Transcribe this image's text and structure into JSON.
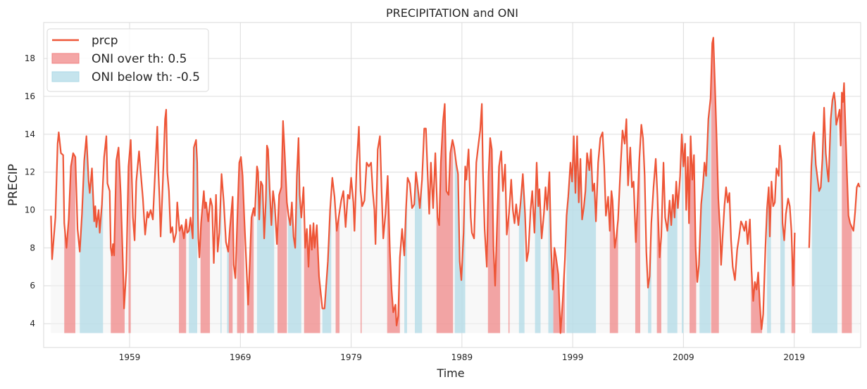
{
  "chart_data": {
    "type": "line",
    "title": "PRECIPITATION and ONI",
    "xlabel": "Time",
    "ylabel": "PRECIP",
    "grid": true,
    "legend": "upper left",
    "xlim": [
      1951.24,
      2025.0
    ],
    "xticks": [
      1959,
      1969,
      1979,
      1989,
      1999,
      2009,
      2019
    ],
    "ylim": [
      2.74,
      19.9
    ],
    "yticks": [
      4,
      6,
      8,
      10,
      12,
      14,
      16,
      18
    ],
    "fill_base": 3.5,
    "x": [
      1951.9,
      1952.0,
      1952.3,
      1952.5,
      1952.6,
      1952.8,
      1953.0,
      1953.1,
      1953.3,
      1953.5,
      1953.7,
      1953.9,
      1954.1,
      1954.3,
      1954.5,
      1954.7,
      1954.9,
      1955.1,
      1955.3,
      1955.4,
      1955.6,
      1955.8,
      1955.9,
      1956.0,
      1956.2,
      1956.3,
      1956.5,
      1956.7,
      1956.9,
      1957.0,
      1957.2,
      1957.3,
      1957.4,
      1957.5,
      1957.6,
      1957.8,
      1958.0,
      1958.2,
      1958.4,
      1958.5,
      1958.7,
      1958.9,
      1959.1,
      1959.3,
      1959.45,
      1959.6,
      1959.85,
      1960.0,
      1960.2,
      1960.4,
      1960.6,
      1960.7,
      1960.9,
      1961.1,
      1961.3,
      1961.5,
      1961.6,
      1961.7,
      1961.8,
      1962.0,
      1962.2,
      1962.3,
      1962.4,
      1962.55,
      1962.7,
      1962.85,
      1963.0,
      1963.2,
      1963.3,
      1963.5,
      1963.7,
      1963.9,
      1964.1,
      1964.2,
      1964.35,
      1964.5,
      1964.7,
      1964.8,
      1965.0,
      1965.1,
      1965.2,
      1965.3,
      1965.45,
      1965.7,
      1965.8,
      1965.9,
      1966.1,
      1966.3,
      1966.45,
      1966.6,
      1966.8,
      1966.95,
      1967.1,
      1967.3,
      1967.5,
      1967.7,
      1967.9,
      1968.05,
      1968.3,
      1968.4,
      1968.55,
      1968.75,
      1968.9,
      1969.05,
      1969.2,
      1969.35,
      1969.55,
      1969.7,
      1969.85,
      1970.0,
      1970.2,
      1970.3,
      1970.5,
      1970.6,
      1970.7,
      1970.85,
      1971.0,
      1971.15,
      1971.3,
      1971.4,
      1971.5,
      1971.65,
      1971.8,
      1971.95,
      1972.1,
      1972.3,
      1972.5,
      1972.7,
      1972.85,
      1973.0,
      1973.2,
      1973.35,
      1973.5,
      1973.65,
      1973.8,
      1973.95,
      1974.1,
      1974.25,
      1974.35,
      1974.5,
      1974.7,
      1974.85,
      1975.0,
      1975.15,
      1975.3,
      1975.45,
      1975.6,
      1975.7,
      1975.9,
      1976.1,
      1976.4,
      1976.6,
      1976.9,
      1977.1,
      1977.3,
      1977.5,
      1977.7,
      1977.9,
      1978.1,
      1978.3,
      1978.5,
      1978.7,
      1978.85,
      1979.0,
      1979.2,
      1979.3,
      1979.5,
      1979.7,
      1979.85,
      1980.0,
      1980.2,
      1980.4,
      1980.6,
      1980.8,
      1980.95,
      1981.1,
      1981.2,
      1981.4,
      1981.6,
      1981.75,
      1981.9,
      1982.1,
      1982.3,
      1982.5,
      1982.65,
      1982.8,
      1983.0,
      1983.1,
      1983.25,
      1983.4,
      1983.6,
      1983.8,
      1983.95,
      1984.1,
      1984.3,
      1984.5,
      1984.7,
      1984.85,
      1985.0,
      1985.2,
      1985.4,
      1985.6,
      1985.75,
      1985.9,
      1986.05,
      1986.2,
      1986.4,
      1986.6,
      1986.8,
      1986.95,
      1987.1,
      1987.3,
      1987.45,
      1987.6,
      1987.8,
      1987.95,
      1988.15,
      1988.3,
      1988.5,
      1988.65,
      1988.8,
      1988.95,
      1989.15,
      1989.3,
      1989.4,
      1989.6,
      1989.8,
      1989.9,
      1990.1,
      1990.3,
      1990.5,
      1990.65,
      1990.8,
      1990.9,
      1991.05,
      1991.25,
      1991.4,
      1991.55,
      1991.7,
      1991.85,
      1992.0,
      1992.15,
      1992.35,
      1992.55,
      1992.7,
      1992.9,
      1993.05,
      1993.25,
      1993.45,
      1993.6,
      1993.75,
      1993.9,
      1994.1,
      1994.3,
      1994.5,
      1994.7,
      1994.85,
      1995.0,
      1995.2,
      1995.35,
      1995.55,
      1995.75,
      1995.9,
      1996.0,
      1996.2,
      1996.4,
      1996.55,
      1996.7,
      1996.9,
      1997.05,
      1997.2,
      1997.35,
      1997.5,
      1997.7,
      1997.9,
      1998.1,
      1998.3,
      1998.45,
      1998.6,
      1998.8,
      1998.95,
      1999.1,
      1999.25,
      1999.4,
      1999.55,
      1999.7,
      1999.85,
      2000.0,
      2000.15,
      2000.3,
      2000.5,
      2000.65,
      2000.8,
      2000.95,
      2001.1,
      2001.3,
      2001.5,
      2001.7,
      2001.85,
      2002.0,
      2002.2,
      2002.35,
      2002.5,
      2002.6,
      2002.8,
      2002.95,
      2003.1,
      2003.3,
      2003.5,
      2003.7,
      2003.85,
      2004.0,
      2004.2,
      2004.35,
      2004.5,
      2004.7,
      2004.85,
      2005.0,
      2005.2,
      2005.35,
      2005.5,
      2005.65,
      2005.8,
      2005.95,
      2006.1,
      2006.3,
      2006.5,
      2006.65,
      2006.85,
      2007.0,
      2007.2,
      2007.35,
      2007.55,
      2007.75,
      2007.9,
      2008.05,
      2008.2,
      2008.35,
      2008.5,
      2008.7,
      2008.85,
      2009.0,
      2009.15,
      2009.25,
      2009.4,
      2009.5,
      2009.65,
      2009.8,
      2009.95,
      2010.1,
      2010.25,
      2010.4,
      2010.6,
      2010.75,
      2010.9,
      2011.05,
      2011.25,
      2011.45,
      2011.6,
      2011.7,
      2011.85,
      2012.0,
      2012.15,
      2012.3,
      2012.4,
      2012.55,
      2012.7,
      2012.85,
      2013.0,
      2013.15,
      2013.3,
      2013.45,
      2013.65,
      2013.85,
      2014.0,
      2014.2,
      2014.35,
      2014.5,
      2014.65,
      2014.8,
      2015.0,
      2015.15,
      2015.3,
      2015.45,
      2015.6,
      2015.75,
      2015.9,
      2016.05,
      2016.2,
      2016.4,
      2016.55,
      2016.7,
      2016.8,
      2016.95,
      2017.1,
      2017.25,
      2017.4,
      2017.6,
      2017.7,
      2017.85,
      2017.95,
      2018.1,
      2018.25,
      2018.45,
      2018.6,
      2018.75,
      2018.9,
      2019.05,
      2019.2,
      2020.35,
      2020.55,
      2020.7,
      2020.8,
      2020.95,
      2021.1,
      2021.25,
      2021.4,
      2021.55,
      2021.7,
      2021.85,
      2022.0,
      2022.1,
      2022.3,
      2022.45,
      2022.6,
      2022.7,
      2022.8,
      2022.95,
      2023.1,
      2023.2,
      2023.3,
      2023.4,
      2023.5,
      2023.6,
      2023.75,
      2023.9,
      2024.05,
      2024.2,
      2024.35,
      2024.5,
      2024.65,
      2024.8,
      2024.9
    ],
    "series": [
      {
        "name": "prcp",
        "color": "#ee5537",
        "values": [
          9.7,
          7.4,
          9.6,
          13.5,
          14.1,
          13.0,
          12.9,
          9.3,
          8.0,
          9.5,
          12.3,
          13.0,
          12.8,
          9.0,
          7.8,
          9.8,
          12.6,
          13.9,
          11.5,
          10.9,
          12.2,
          9.4,
          10.2,
          9.1,
          10.0,
          8.8,
          10.3,
          12.8,
          13.9,
          11.4,
          11.0,
          8.0,
          7.6,
          8.2,
          7.6,
          12.6,
          13.3,
          10.8,
          7.1,
          4.8,
          6.8,
          12.3,
          13.7,
          9.6,
          8.4,
          11.5,
          13.1,
          12.0,
          10.6,
          8.7,
          9.9,
          9.6,
          10.0,
          9.5,
          12.0,
          14.4,
          12.0,
          10.6,
          8.6,
          11.5,
          14.8,
          15.3,
          12.0,
          11.0,
          8.8,
          9.1,
          8.3,
          8.8,
          10.4,
          8.9,
          9.2,
          8.5,
          9.5,
          8.8,
          8.9,
          9.6,
          8.5,
          13.3,
          13.7,
          12.5,
          8.5,
          7.5,
          9.3,
          11.0,
          10.1,
          10.4,
          9.4,
          10.6,
          10.2,
          7.2,
          10.8,
          7.8,
          8.8,
          11.9,
          10.4,
          8.3,
          7.8,
          9.0,
          10.7,
          7.1,
          6.4,
          10.0,
          12.5,
          12.8,
          11.8,
          9.6,
          7.0,
          5.0,
          7.2,
          9.6,
          10.1,
          9.7,
          12.3,
          12.0,
          9.5,
          11.5,
          11.3,
          8.5,
          10.5,
          13.4,
          13.2,
          11.0,
          9.2,
          11.0,
          10.3,
          8.2,
          10.8,
          11.2,
          14.7,
          13.0,
          10.4,
          9.7,
          9.2,
          10.4,
          8.6,
          8.0,
          11.8,
          13.8,
          10.8,
          9.6,
          11.2,
          8.0,
          9.0,
          7.0,
          9.2,
          7.9,
          9.3,
          8.0,
          9.2,
          6.5,
          4.8,
          4.8,
          7.3,
          10.0,
          11.7,
          10.7,
          8.9,
          9.7,
          10.5,
          11.0,
          9.1,
          10.8,
          10.6,
          11.7,
          10.4,
          8.9,
          12.4,
          14.4,
          11.0,
          10.2,
          10.5,
          12.5,
          12.3,
          12.5,
          11.0,
          10.0,
          8.2,
          13.2,
          13.9,
          11.0,
          8.5,
          9.8,
          11.8,
          7.8,
          5.8,
          4.6,
          5.0,
          3.9,
          4.4,
          7.5,
          9.0,
          7.6,
          10.0,
          11.7,
          11.4,
          10.1,
          10.3,
          12.0,
          11.3,
          10.1,
          11.6,
          14.3,
          14.3,
          12.0,
          9.8,
          12.5,
          10.1,
          13.0,
          9.6,
          9.2,
          12.5,
          14.7,
          15.6,
          11.0,
          10.8,
          13.0,
          13.7,
          13.3,
          12.4,
          11.9,
          7.3,
          6.3,
          8.8,
          12.3,
          11.6,
          13.2,
          9.6,
          8.8,
          8.5,
          12.5,
          13.5,
          14.2,
          15.6,
          12.0,
          9.0,
          7.0,
          11.8,
          13.8,
          13.2,
          8.0,
          6.0,
          8.8,
          12.3,
          13.1,
          11.0,
          12.4,
          8.7,
          9.8,
          11.6,
          10.0,
          9.3,
          10.3,
          9.2,
          10.4,
          11.9,
          9.8,
          7.3,
          7.8,
          10.0,
          11.0,
          8.8,
          12.5,
          10.2,
          11.1,
          8.5,
          9.8,
          11.2,
          10.0,
          12.0,
          8.0,
          5.8,
          8.0,
          7.5,
          6.6,
          3.5,
          5.2,
          7.4,
          9.7,
          10.7,
          12.5,
          11.5,
          13.9,
          10.9,
          13.9,
          10.4,
          12.7,
          9.5,
          10.1,
          11.0,
          13.0,
          12.1,
          13.2,
          11.0,
          11.4,
          9.4,
          12.5,
          13.8,
          14.1,
          12.3,
          9.7,
          10.7,
          8.9,
          11.0,
          10.5,
          8.0,
          8.6,
          9.5,
          12.0,
          14.2,
          13.5,
          14.8,
          11.3,
          13.3,
          11.2,
          11.5,
          8.3,
          10.2,
          12.5,
          14.5,
          13.8,
          11.8,
          7.8,
          5.9,
          6.5,
          9.3,
          11.2,
          12.7,
          10.8,
          7.5,
          8.6,
          12.5,
          9.6,
          8.9,
          10.5,
          9.2,
          10.8,
          9.6,
          11.5,
          10.1,
          11.8,
          14.0,
          12.3,
          13.5,
          10.0,
          12.8,
          9.3,
          13.9,
          11.6,
          12.9,
          8.0,
          6.2,
          7.1,
          10.3,
          11.2,
          12.5,
          11.8,
          14.8,
          15.9,
          18.8,
          19.1,
          16.5,
          13.7,
          10.6,
          9.0,
          7.1,
          8.7,
          10.2,
          11.2,
          10.4,
          10.9,
          8.4,
          7.0,
          6.3,
          7.9,
          8.5,
          9.4,
          9.2,
          8.9,
          9.4,
          8.2,
          9.5,
          6.8,
          5.2,
          6.2,
          5.8,
          6.7,
          5.0,
          3.7,
          4.5,
          8.0,
          10.1,
          11.2,
          8.6,
          11.5,
          10.2,
          10.4,
          12.2,
          11.8,
          13.4,
          12.6,
          9.3,
          8.4,
          9.8,
          10.6,
          10.2,
          8.9,
          6.0,
          8.8,
          null,
          8.0,
          12.3,
          13.9,
          14.1,
          12.4,
          11.7,
          11.0,
          11.2,
          12.7,
          15.4,
          13.0,
          12.0,
          11.5,
          14.8,
          15.8,
          16.2,
          15.7,
          14.5,
          14.9,
          15.3,
          13.4,
          16.2,
          15.7,
          16.7,
          14.8,
          12.1,
          9.7,
          9.3,
          9.1,
          8.9,
          9.9,
          11.2,
          11.4,
          11.2
        ]
      }
    ],
    "fills": [
      {
        "name": "ONI over th: 0.5",
        "color": "#f08080",
        "intervals": [
          [
            1953.1,
            1954.1
          ],
          [
            1957.3,
            1958.55
          ],
          [
            1958.9,
            1959.1
          ],
          [
            1963.45,
            1964.1
          ],
          [
            1965.4,
            1966.25
          ],
          [
            1967.95,
            1968.3
          ],
          [
            1968.7,
            1969.35
          ],
          [
            1969.6,
            1970.2
          ],
          [
            1972.35,
            1973.2
          ],
          [
            1974.75,
            1976.2
          ],
          [
            1977.6,
            1977.95
          ],
          [
            1979.85,
            1979.95
          ],
          [
            1982.25,
            1983.4
          ],
          [
            1986.7,
            1988.2
          ],
          [
            1991.35,
            1992.45
          ],
          [
            1993.2,
            1993.3
          ],
          [
            1997.25,
            1998.3
          ],
          [
            2002.35,
            2003.1
          ],
          [
            2004.65,
            2005.1
          ],
          [
            2006.6,
            2007.0
          ],
          [
            2009.55,
            2010.15
          ],
          [
            2011.5,
            2012.2
          ],
          [
            2015.1,
            2016.1
          ],
          [
            2018.75,
            2019.1
          ],
          [
            2023.3,
            2024.2
          ]
        ]
      },
      {
        "name": "ONI below th: -0.5",
        "color": "#add8e6",
        "intervals": [
          [
            1954.5,
            1956.6
          ],
          [
            1964.35,
            1965.1
          ],
          [
            1967.2,
            1967.3
          ],
          [
            1967.8,
            1967.95
          ],
          [
            1970.5,
            1972.05
          ],
          [
            1973.3,
            1974.5
          ],
          [
            1976.4,
            1977.2
          ],
          [
            1983.8,
            1984.05
          ],
          [
            1984.75,
            1985.4
          ],
          [
            1988.35,
            1989.3
          ],
          [
            1994.15,
            1994.65
          ],
          [
            1995.6,
            1996.1
          ],
          [
            1996.8,
            1997.25
          ],
          [
            1998.45,
            2001.1
          ],
          [
            2005.8,
            2006.1
          ],
          [
            2007.55,
            2008.45
          ],
          [
            2008.85,
            2009.0
          ],
          [
            2010.45,
            2011.45
          ],
          [
            2016.55,
            2016.9
          ],
          [
            2017.75,
            2018.15
          ],
          [
            2020.6,
            2022.9
          ]
        ]
      }
    ]
  }
}
